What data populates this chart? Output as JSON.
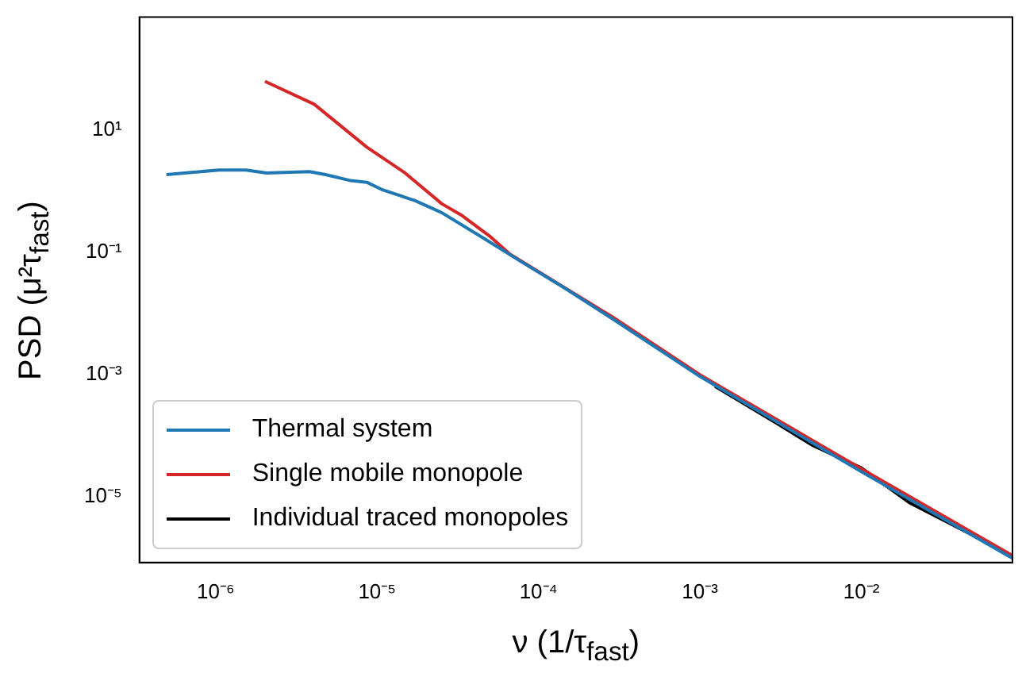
{
  "chart_data": {
    "type": "line",
    "xlabel": "ν (1/τ$_{fast}$)",
    "ylabel": "PSD (μ²τ$_{fast}$)",
    "log": "xy",
    "grid": false,
    "legend": "bottom left",
    "marker": "none",
    "line_style": "solid",
    "xlim": [
      3.37e-07,
      0.0863
    ],
    "ylim": [
      8.5e-07,
      708
    ],
    "xticks": [
      {
        "value": 1e-06,
        "label": "10⁻⁶"
      },
      {
        "value": 1e-05,
        "label": "10⁻⁵"
      },
      {
        "value": 0.0001,
        "label": "10⁻⁴"
      },
      {
        "value": 0.001,
        "label": "10⁻³"
      },
      {
        "value": 0.01,
        "label": "10⁻²"
      }
    ],
    "yticks": [
      {
        "value": 1e-05,
        "label": "10⁻⁵"
      },
      {
        "value": 0.001,
        "label": "10⁻³"
      },
      {
        "value": 0.1,
        "label": "10⁻¹"
      },
      {
        "value": 10,
        "label": "10¹"
      }
    ],
    "series": [
      {
        "name": "Thermal system",
        "color": "#1f77b4",
        "x": [
          4.95e-07,
          1.05e-06,
          1.54e-06,
          2.07e-06,
          3.81e-06,
          4.79e-06,
          6.87e-06,
          8.63e-06,
          1.08e-05,
          1.71e-05,
          2.51e-05,
          4.62e-05,
          7.8e-05,
          0.000144,
          0.000284,
          0.001,
          0.01,
          0.0863
        ],
        "values": [
          1.88,
          2.24,
          2.24,
          2.0,
          2.11,
          1.88,
          1.5,
          1.41,
          1.06,
          0.71,
          0.45,
          0.168,
          0.071,
          0.0266,
          0.0084,
          0.00094,
          2.6e-05,
          1e-06
        ]
      },
      {
        "name": "Single mobile monopole",
        "color": "#d62728",
        "x": [
          2.02e-06,
          4.08e-06,
          8.63e-06,
          1.49e-05,
          2.51e-05,
          3.37e-05,
          4.95e-05,
          6.65e-05,
          0.000284,
          0.001,
          0.01,
          0.0863
        ],
        "values": [
          63,
          26.6,
          5.3,
          2.0,
          0.63,
          0.4,
          0.188,
          0.094,
          0.009,
          0.001,
          2.9e-05,
          1.1e-06
        ]
      },
      {
        "name": "Individual traced monopoles",
        "color": "#000000",
        "x": [
          0.00124,
          0.003,
          0.005,
          0.01,
          0.02,
          0.0863
        ],
        "values": [
          0.00065,
          0.00016,
          7e-05,
          3e-05,
          8e-06,
          1.1e-06
        ]
      }
    ]
  }
}
